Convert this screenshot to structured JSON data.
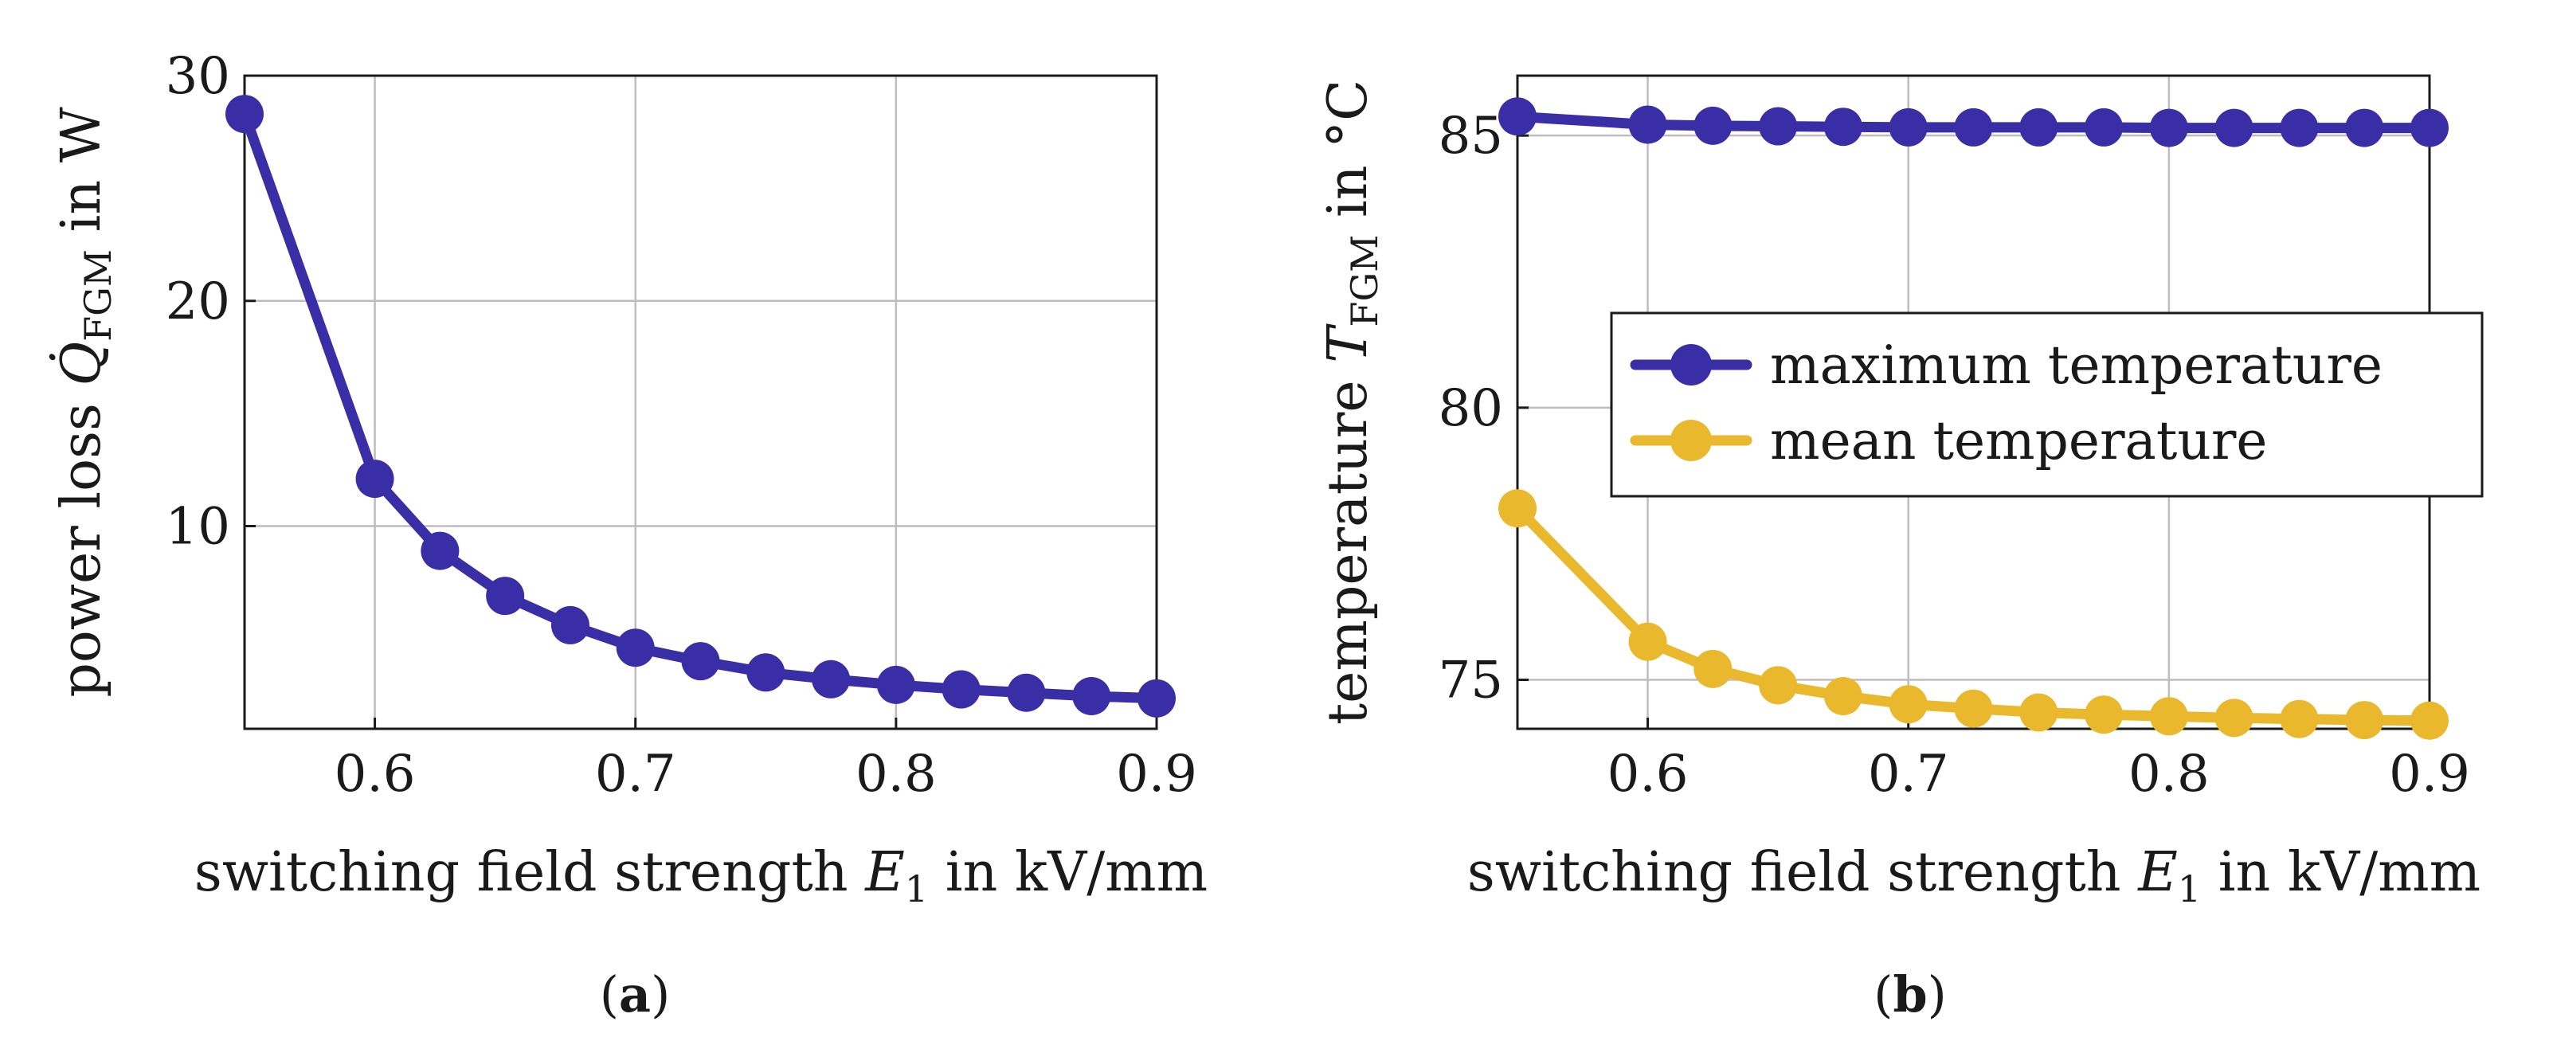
{
  "chart_data": [
    {
      "type": "line",
      "panel_label": "a",
      "xlabel_prefix": "switching field strength ",
      "xlabel_var": "E",
      "xlabel_sub": "1",
      "xlabel_suffix": " in kV/mm",
      "ylabel_prefix": "power loss ",
      "ylabel_var": "Q̇",
      "ylabel_sub": "FGM",
      "ylabel_suffix": " in W",
      "xlim": [
        0.55,
        0.9
      ],
      "ylim": [
        1,
        30
      ],
      "xticks": [
        "0.6",
        "0.7",
        "0.8",
        "0.9"
      ],
      "xtick_values": [
        0.6,
        0.7,
        0.8,
        0.9
      ],
      "yticks": [
        "10",
        "20",
        "30"
      ],
      "ytick_values": [
        10,
        20,
        30
      ],
      "grid": true,
      "series": [
        {
          "name": "power loss",
          "color": "#3a2ea6",
          "x": [
            0.55,
            0.6,
            0.625,
            0.65,
            0.675,
            0.7,
            0.725,
            0.75,
            0.775,
            0.8,
            0.825,
            0.85,
            0.875,
            0.9
          ],
          "y": [
            28.3,
            12.1,
            8.9,
            6.9,
            5.6,
            4.6,
            4.0,
            3.5,
            3.2,
            2.95,
            2.75,
            2.6,
            2.45,
            2.35
          ]
        }
      ]
    },
    {
      "type": "line",
      "panel_label": "b",
      "xlabel_prefix": "switching field strength ",
      "xlabel_var": "E",
      "xlabel_sub": "1",
      "xlabel_suffix": " in kV/mm",
      "ylabel_prefix": "temperature ",
      "ylabel_var": "T",
      "ylabel_sub": "FGM",
      "ylabel_suffix": " in °C",
      "xlim": [
        0.55,
        0.9
      ],
      "ylim": [
        74.1,
        86.1
      ],
      "xticks": [
        "0.6",
        "0.7",
        "0.8",
        "0.9"
      ],
      "xtick_values": [
        0.6,
        0.7,
        0.8,
        0.9
      ],
      "yticks": [
        "75",
        "80",
        "85"
      ],
      "ytick_values": [
        75,
        80,
        85
      ],
      "grid": true,
      "legend_position": "center-right",
      "series": [
        {
          "name": "maximum temperature",
          "color": "#3a2ea6",
          "x": [
            0.55,
            0.6,
            0.625,
            0.65,
            0.675,
            0.7,
            0.725,
            0.75,
            0.775,
            0.8,
            0.825,
            0.85,
            0.875,
            0.9
          ],
          "y": [
            85.35,
            85.2,
            85.18,
            85.17,
            85.16,
            85.15,
            85.15,
            85.15,
            85.15,
            85.14,
            85.14,
            85.14,
            85.14,
            85.14
          ]
        },
        {
          "name": "mean temperature",
          "color": "#e9b82c",
          "x": [
            0.55,
            0.6,
            0.625,
            0.65,
            0.675,
            0.7,
            0.725,
            0.75,
            0.775,
            0.8,
            0.825,
            0.85,
            0.875,
            0.9
          ],
          "y": [
            78.15,
            75.7,
            75.2,
            74.9,
            74.7,
            74.55,
            74.47,
            74.4,
            74.36,
            74.33,
            74.3,
            74.28,
            74.26,
            74.25
          ]
        }
      ]
    }
  ]
}
